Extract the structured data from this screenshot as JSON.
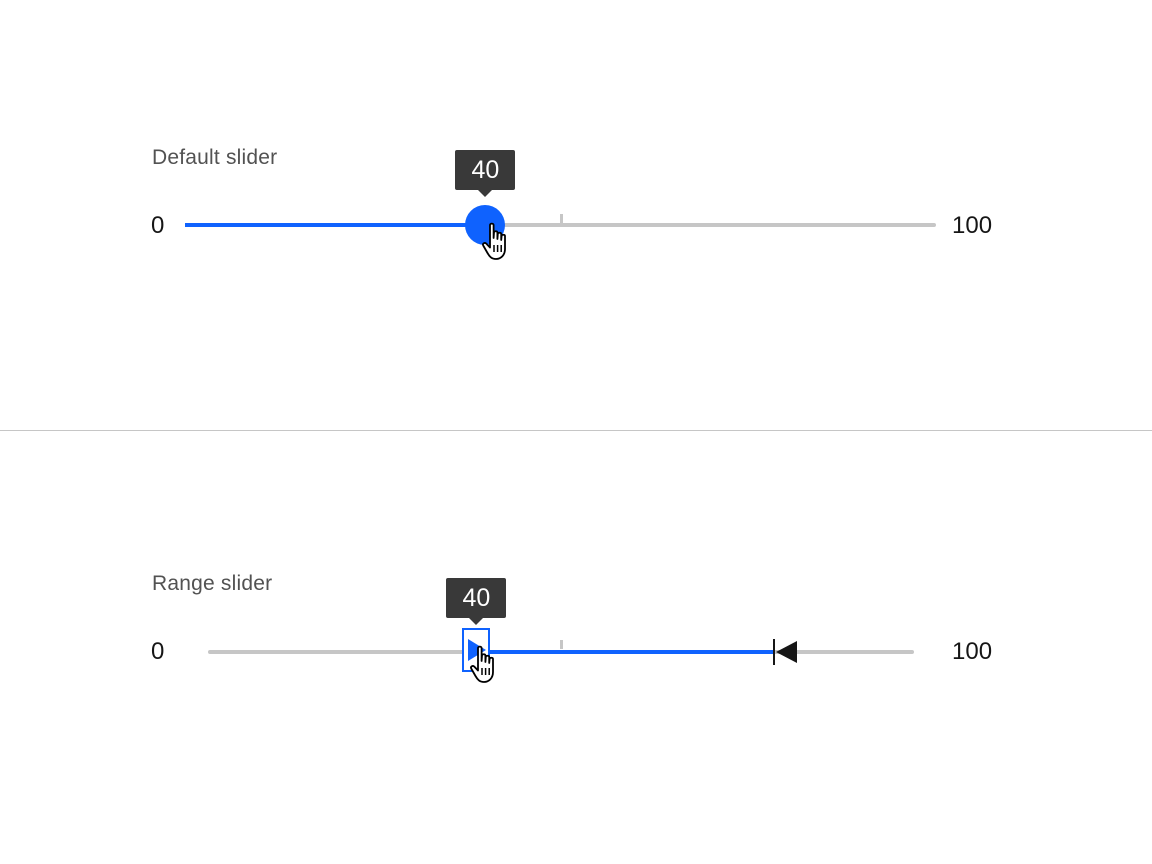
{
  "default_slider": {
    "label": "Default slider",
    "min_label": "0",
    "max_label": "100",
    "value": 40,
    "tooltip": "40",
    "min": 0,
    "max": 100,
    "tick_value": 50
  },
  "range_slider": {
    "label": "Range slider",
    "min_label": "0",
    "max_label": "100",
    "lower_value": 40,
    "upper_value": 80,
    "tooltip": "40",
    "min": 0,
    "max": 100,
    "tick_value": 50
  },
  "colors": {
    "accent": "#0f62fe",
    "track": "#c6c6c6",
    "tooltip_bg": "#393939",
    "label_text": "#525252",
    "text": "#161616"
  },
  "icons": {
    "pointer": "hand-pointer-icon",
    "lower_handle": "triangle-right-icon",
    "upper_handle": "triangle-left-icon"
  }
}
